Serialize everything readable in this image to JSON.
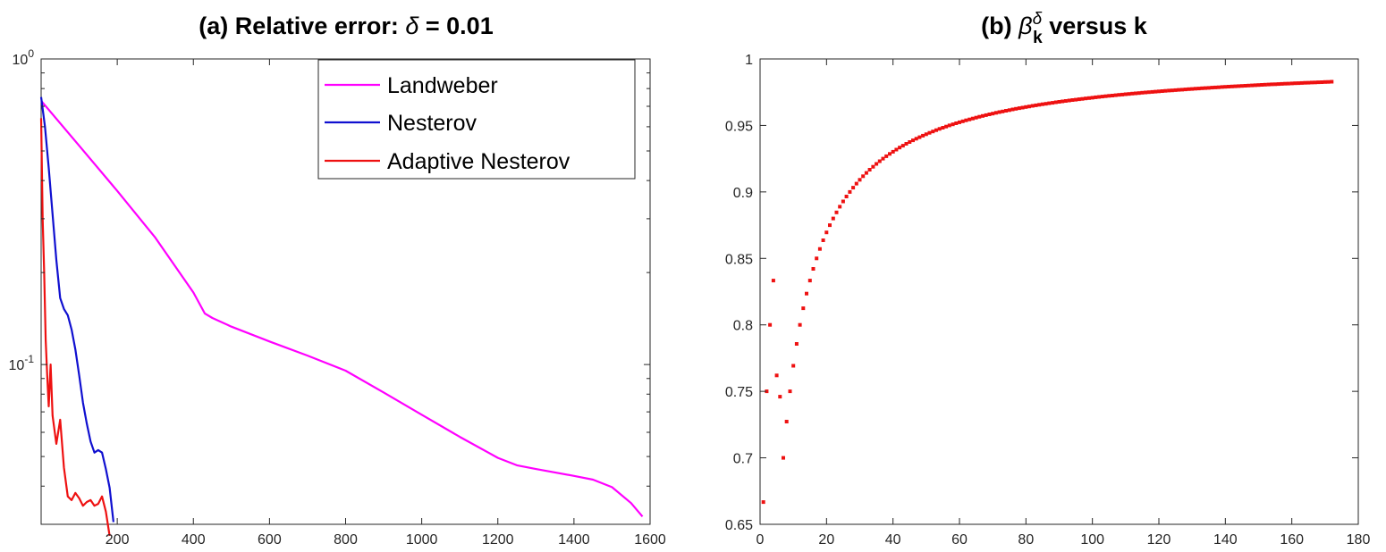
{
  "chart_data": [
    {
      "type": "line",
      "title_prefix": "(a) Relative error: ",
      "title_symbol": "δ",
      "title_suffix": " = 0.01",
      "yscale": "log",
      "xlim": [
        0,
        1600
      ],
      "ylim": [
        0.03,
        1
      ],
      "xticks": [
        "200",
        "400",
        "600",
        "800",
        "1000",
        "1200",
        "1400",
        "1600"
      ],
      "yticks": [
        {
          "base": "10",
          "exp": "0"
        },
        {
          "base": "10",
          "exp": "-1"
        }
      ],
      "legend": {
        "position": "top-right"
      },
      "series": [
        {
          "name": "Landweber",
          "color": "#ff00ff",
          "x": [
            0,
            100,
            200,
            300,
            400,
            430,
            450,
            500,
            600,
            700,
            800,
            900,
            1000,
            1100,
            1200,
            1250,
            1300,
            1400,
            1450,
            1500,
            1550,
            1580
          ],
          "y": [
            0.73,
            0.52,
            0.37,
            0.26,
            0.172,
            0.147,
            0.142,
            0.133,
            0.119,
            0.107,
            0.0955,
            0.081,
            0.0685,
            0.058,
            0.0495,
            0.0468,
            0.0455,
            0.0432,
            0.042,
            0.0397,
            0.0352,
            0.0318
          ]
        },
        {
          "name": "Nesterov",
          "color": "#1010d0",
          "x": [
            0,
            10,
            20,
            30,
            40,
            50,
            60,
            70,
            80,
            90,
            100,
            110,
            120,
            130,
            140,
            150,
            160,
            170,
            180,
            190
          ],
          "y": [
            0.75,
            0.6,
            0.44,
            0.31,
            0.22,
            0.165,
            0.152,
            0.145,
            0.13,
            0.112,
            0.092,
            0.075,
            0.064,
            0.056,
            0.0515,
            0.0525,
            0.0515,
            0.0455,
            0.0395,
            0.0305
          ]
        },
        {
          "name": "Adaptive Nesterov",
          "color": "#ee1111",
          "x": [
            0,
            4,
            8,
            12,
            16,
            20,
            25,
            30,
            40,
            50,
            60,
            70,
            80,
            90,
            100,
            110,
            120,
            130,
            140,
            150,
            160,
            170,
            180
          ],
          "y": [
            0.64,
            0.3,
            0.2,
            0.12,
            0.092,
            0.073,
            0.1,
            0.068,
            0.055,
            0.066,
            0.046,
            0.037,
            0.036,
            0.038,
            0.0365,
            0.0345,
            0.0355,
            0.036,
            0.0345,
            0.035,
            0.037,
            0.033,
            0.0275
          ]
        }
      ]
    },
    {
      "type": "scatter",
      "title_prefix": "(b) ",
      "title_symbol": "β",
      "title_sup": "δ",
      "title_sub": "k",
      "title_suffix": " versus k",
      "xlim": [
        0,
        180
      ],
      "ylim": [
        0.65,
        1
      ],
      "xticks": [
        "0",
        "20",
        "40",
        "60",
        "80",
        "100",
        "120",
        "140",
        "160",
        "180"
      ],
      "yticks": [
        "0.65",
        "0.7",
        "0.75",
        "0.8",
        "0.85",
        "0.9",
        "0.95",
        "1"
      ],
      "marker_color": "#ee1111",
      "series": [
        {
          "x": [
            1,
            2,
            3,
            4,
            5,
            6
          ],
          "y": [
            0.6667,
            0.75,
            0.8,
            0.8333,
            0.762,
            0.746
          ]
        }
      ],
      "curve": {
        "formula": "k/(k+3) for k>=7, capped at 0.99",
        "k_start": 7,
        "k_end": 172,
        "cap": 0.99
      }
    }
  ]
}
